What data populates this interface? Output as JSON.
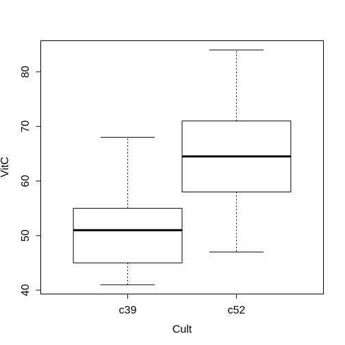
{
  "chart_data": {
    "type": "box",
    "xlabel": "Cult",
    "ylabel": "VitC",
    "categories": [
      "c39",
      "c52"
    ],
    "boxes": [
      {
        "name": "c39",
        "min": 41,
        "q1": 45,
        "median": 51,
        "q3": 55,
        "max": 68
      },
      {
        "name": "c52",
        "min": 47,
        "q1": 58,
        "median": 64.5,
        "q3": 71,
        "max": 84
      }
    ],
    "ylim": [
      39.3,
      85.7
    ],
    "yticks": [
      40,
      50,
      60,
      70,
      80
    ],
    "grid": false
  }
}
